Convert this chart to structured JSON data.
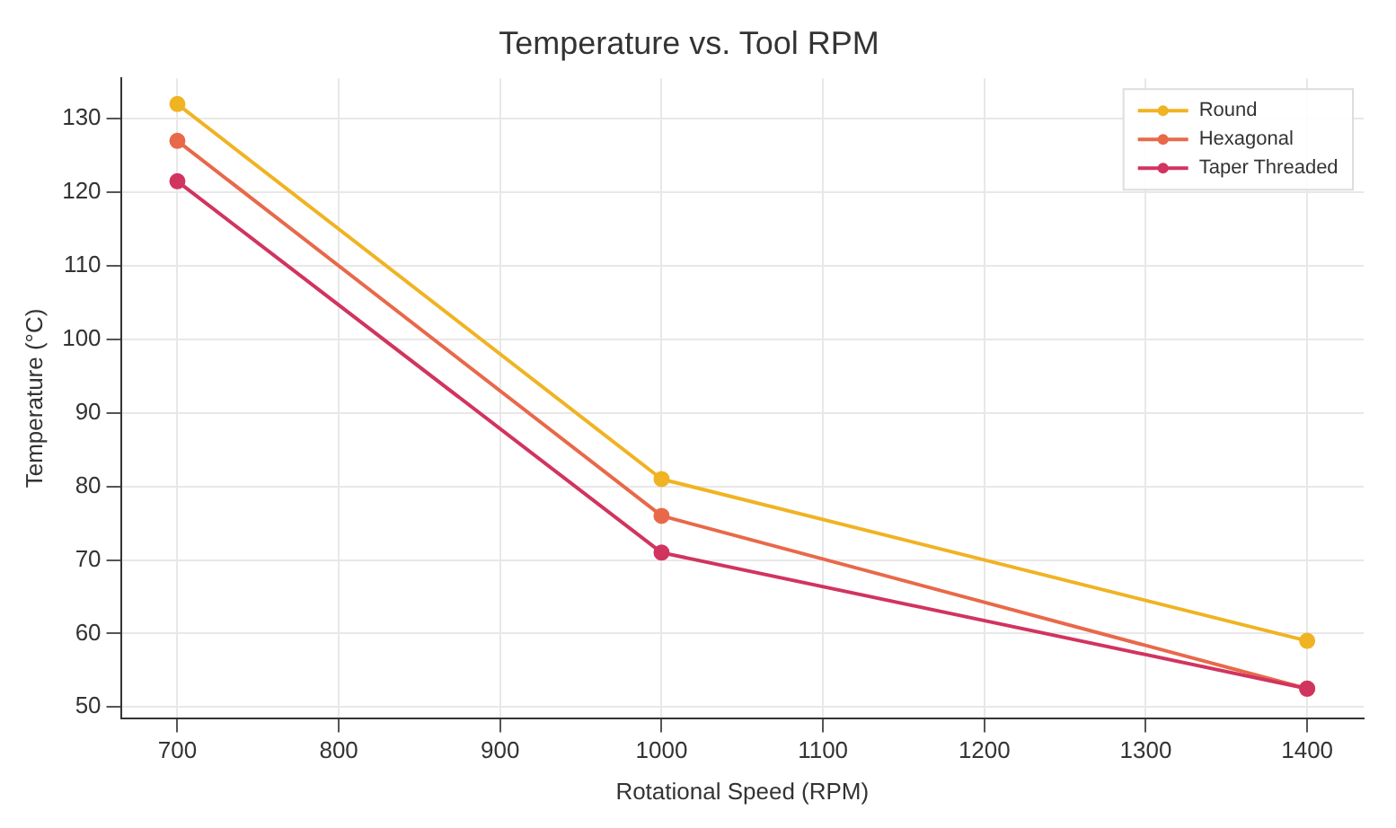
{
  "chart_data": {
    "type": "line",
    "title": "Temperature vs. Tool RPM",
    "xlabel": "Rotational Speed (RPM)",
    "ylabel": "Temperature (°C)",
    "x": [
      700,
      1000,
      1400
    ],
    "series": [
      {
        "name": "Round",
        "color": "#f0b323",
        "values": [
          132,
          81,
          59
        ]
      },
      {
        "name": "Hexagonal",
        "color": "#e8694a",
        "values": [
          127,
          76,
          52.5
        ]
      },
      {
        "name": "Taper Threaded",
        "color": "#d1345f",
        "values": [
          121.5,
          71,
          52.5
        ]
      }
    ],
    "xlim": [
      665,
      1435
    ],
    "xticks": [
      700,
      800,
      900,
      1000,
      1100,
      1200,
      1300,
      1400
    ],
    "ylim": [
      48.5,
      135.5
    ],
    "yticks": [
      50,
      60,
      70,
      80,
      90,
      100,
      110,
      120,
      130
    ],
    "grid": true,
    "legend": "top right",
    "marker": "circle",
    "line_style": "solid"
  }
}
